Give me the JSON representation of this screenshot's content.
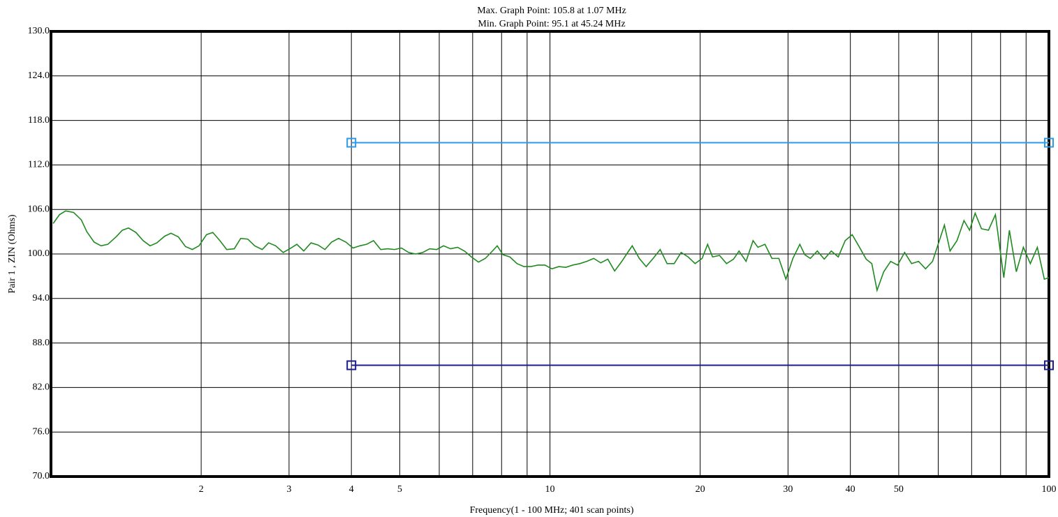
{
  "chart_data": {
    "type": "line",
    "title": [
      "Max. Graph Point: 105.8 at 1.07 MHz",
      "Min. Graph Point: 95.1 at 45.24 MHz"
    ],
    "xlabel": "Frequency(1 - 100 MHz; 401 scan points)",
    "ylabel": "Pair 1 , ZIN (Ohms)",
    "xscale": "log",
    "grid": true,
    "xlim": [
      1,
      100
    ],
    "ylim": [
      70,
      130
    ],
    "xticks": [
      2,
      3,
      4,
      5,
      {
        "value": 6,
        "label": null
      },
      {
        "value": 7,
        "label": null
      },
      {
        "value": 8,
        "label": null
      },
      {
        "value": 9,
        "label": null
      },
      10,
      20,
      30,
      40,
      50,
      {
        "value": 60,
        "label": null
      },
      {
        "value": 70,
        "label": null
      },
      {
        "value": 80,
        "label": null
      },
      {
        "value": 90,
        "label": null
      },
      100
    ],
    "yticks": [
      {
        "value": 70,
        "label": "70.0"
      },
      {
        "value": 76,
        "label": "76.0"
      },
      {
        "value": 82,
        "label": "82.0"
      },
      {
        "value": 88,
        "label": "88.0"
      },
      {
        "value": 94,
        "label": "94.0"
      },
      {
        "value": 100,
        "label": "100.0"
      },
      {
        "value": 106,
        "label": "106.0"
      },
      {
        "value": 112,
        "label": "112.0"
      },
      {
        "value": 118,
        "label": "118.0"
      },
      {
        "value": 124,
        "label": "124.0"
      },
      {
        "value": 130,
        "label": "130.0"
      }
    ],
    "series": [
      {
        "color": "#1f8a1f",
        "marker": null,
        "x": [
          1.01,
          1.04,
          1.07,
          1.11,
          1.15,
          1.18,
          1.22,
          1.26,
          1.3,
          1.35,
          1.39,
          1.43,
          1.48,
          1.53,
          1.58,
          1.63,
          1.69,
          1.74,
          1.8,
          1.86,
          1.92,
          1.98,
          2.05,
          2.11,
          2.18,
          2.25,
          2.33,
          2.4,
          2.48,
          2.56,
          2.65,
          2.73,
          2.82,
          2.92,
          3.01,
          3.11,
          3.21,
          3.32,
          3.43,
          3.54,
          3.65,
          3.77,
          3.9,
          4.03,
          4.16,
          4.29,
          4.43,
          4.58,
          4.73,
          4.88,
          5.04,
          5.21,
          5.38,
          5.56,
          5.74,
          5.93,
          6.12,
          6.32,
          6.53,
          6.74,
          6.96,
          7.19,
          7.42,
          7.67,
          7.84,
          8.05,
          8.31,
          8.59,
          8.87,
          9.16,
          9.46,
          9.77,
          10.09,
          10.42,
          10.76,
          11.11,
          11.48,
          11.85,
          12.24,
          12.64,
          13.06,
          13.48,
          13.93,
          14.38,
          14.62,
          15.1,
          15.59,
          16.1,
          16.63,
          17.17,
          17.74,
          18.32,
          18.92,
          19.54,
          20.18,
          20.7,
          21.18,
          21.87,
          22.59,
          23.33,
          23.93,
          24.72,
          25.53,
          26.11,
          26.97,
          27.85,
          28.76,
          29.71,
          30.68,
          31.68,
          32.41,
          33.25,
          34.34,
          35.46,
          36.63,
          37.83,
          39.06,
          40.34,
          41.4,
          43.03,
          44.16,
          45.24,
          46.66,
          48.17,
          49.75,
          51.38,
          53.06,
          54.8,
          56.59,
          58.45,
          59.98,
          61.74,
          63.36,
          65.43,
          67.57,
          69.34,
          71.15,
          73.25,
          75.65,
          78.12,
          81.2,
          83.32,
          86.04,
          88.87,
          91.78,
          94.8,
          97.9,
          100
        ],
        "values": [
          104.1,
          105.3,
          105.8,
          105.6,
          104.6,
          103.0,
          101.6,
          101.1,
          101.3,
          102.3,
          103.2,
          103.5,
          102.9,
          101.8,
          101.1,
          101.5,
          102.4,
          102.8,
          102.3,
          101.0,
          100.6,
          101.1,
          102.6,
          102.9,
          101.8,
          100.6,
          100.7,
          102.1,
          102.0,
          101.1,
          100.6,
          101.5,
          101.1,
          100.2,
          100.7,
          101.3,
          100.4,
          101.5,
          101.2,
          100.6,
          101.6,
          102.1,
          101.6,
          100.8,
          101.1,
          101.3,
          101.8,
          100.6,
          100.7,
          100.6,
          100.8,
          100.2,
          100.0,
          100.2,
          100.7,
          100.6,
          101.1,
          100.7,
          100.9,
          100.4,
          99.6,
          98.9,
          99.4,
          100.4,
          101.1,
          99.9,
          99.6,
          98.7,
          98.3,
          98.3,
          98.5,
          98.5,
          98.0,
          98.3,
          98.2,
          98.5,
          98.7,
          99.0,
          99.4,
          98.8,
          99.3,
          97.7,
          99.0,
          100.4,
          101.1,
          99.4,
          98.3,
          99.4,
          100.6,
          98.7,
          98.7,
          100.2,
          99.6,
          98.7,
          99.4,
          101.3,
          99.6,
          99.8,
          98.7,
          99.3,
          100.4,
          99.0,
          101.8,
          100.9,
          101.3,
          99.4,
          99.4,
          96.6,
          99.4,
          101.3,
          99.9,
          99.4,
          100.4,
          99.3,
          100.4,
          99.6,
          101.8,
          102.6,
          101.3,
          99.3,
          98.7,
          95.1,
          97.6,
          99.0,
          98.5,
          100.2,
          98.7,
          99.0,
          98.0,
          99.0,
          101.3,
          103.9,
          100.4,
          101.8,
          104.5,
          103.2,
          105.5,
          103.4,
          103.2,
          105.3,
          96.8,
          103.2,
          97.6,
          100.9,
          98.7,
          100.9,
          96.6,
          96.8
        ]
      },
      {
        "color": "#2b9be8",
        "marker": "square",
        "x": [
          4,
          100
        ],
        "values": [
          115,
          115
        ]
      },
      {
        "color": "#1c1c8f",
        "marker": "square",
        "x": [
          4,
          100
        ],
        "values": [
          85,
          85
        ]
      }
    ]
  }
}
